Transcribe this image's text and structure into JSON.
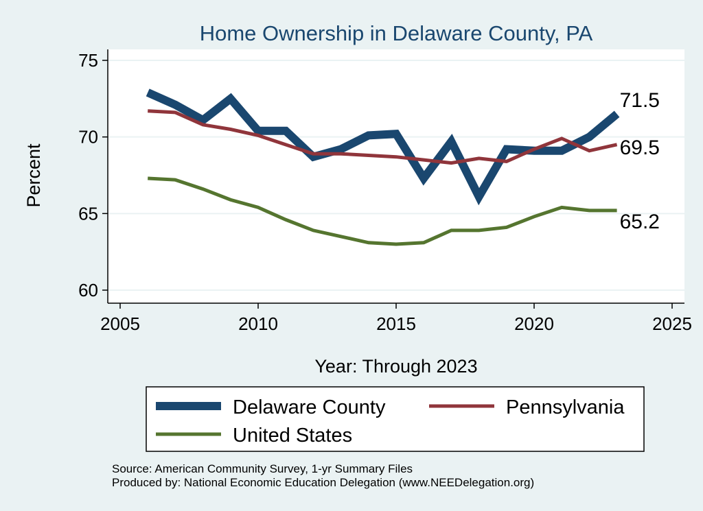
{
  "chart_data": {
    "type": "line",
    "title": "Home Ownership in Delaware County, PA",
    "xlabel": "Year: Through 2023",
    "ylabel": "Percent",
    "xlim": [
      2005,
      2025
    ],
    "ylim": [
      60,
      75
    ],
    "xticks": [
      2005,
      2010,
      2015,
      2020,
      2025
    ],
    "yticks": [
      60,
      65,
      70,
      75
    ],
    "grid": true,
    "legend_position": "bottom",
    "x": [
      2006,
      2007,
      2008,
      2009,
      2010,
      2011,
      2012,
      2013,
      2014,
      2015,
      2016,
      2017,
      2018,
      2019,
      2020,
      2021,
      2022,
      2023
    ],
    "series": [
      {
        "name": "Delaware County",
        "color": "#1a476f",
        "values": [
          72.9,
          72.1,
          71.1,
          72.5,
          70.4,
          70.4,
          68.7,
          69.2,
          70.1,
          70.2,
          67.3,
          69.7,
          66.1,
          69.2,
          69.1,
          69.1,
          70.0,
          71.5
        ],
        "end_label": "71.5"
      },
      {
        "name": "Pennsylvania",
        "color": "#90353b",
        "values": [
          71.7,
          71.6,
          70.8,
          70.5,
          70.1,
          69.5,
          68.9,
          68.9,
          68.8,
          68.7,
          68.5,
          68.3,
          68.6,
          68.4,
          69.2,
          69.9,
          69.1,
          69.5
        ],
        "end_label": "69.5"
      },
      {
        "name": "United States",
        "color": "#55752f",
        "values": [
          67.3,
          67.2,
          66.6,
          65.9,
          65.4,
          64.6,
          63.9,
          63.5,
          63.1,
          63.0,
          63.1,
          63.9,
          63.9,
          64.1,
          64.8,
          65.4,
          65.2,
          65.2
        ],
        "end_label": "65.2"
      }
    ]
  },
  "notes": {
    "source": "Source: American Community Survey, 1-yr Summary Files",
    "produced": "Produced by: National Economic Education Delegation (www.NEEDelegation.org)"
  }
}
